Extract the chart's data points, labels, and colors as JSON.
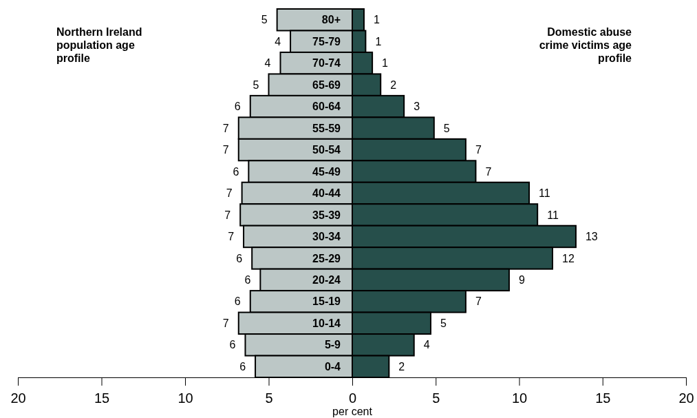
{
  "chart_data": [
    {
      "type": "bar",
      "orientation": "horizontal",
      "title": "Northern Ireland population age profile",
      "xlabel": "per cent",
      "categories": [
        "80+",
        "75-79",
        "70-74",
        "65-69",
        "60-64",
        "55-59",
        "50-54",
        "45-49",
        "40-44",
        "35-39",
        "30-34",
        "25-29",
        "20-24",
        "15-19",
        "10-14",
        "5-9",
        "0-4"
      ],
      "xlim": [
        20,
        0
      ],
      "xticks": [
        20,
        15,
        10,
        5,
        0
      ],
      "series": [
        {
          "color": "#bcc7c6",
          "values": [
            4.5,
            3.7,
            4.3,
            5.0,
            6.1,
            6.8,
            6.8,
            6.2,
            6.6,
            6.7,
            6.5,
            6.0,
            5.5,
            6.1,
            6.8,
            6.4,
            5.8
          ],
          "value_labels": [
            "5",
            "4",
            "4",
            "5",
            "6",
            "7",
            "7",
            "6",
            "7",
            "7",
            "7",
            "6",
            "6",
            "6",
            "7",
            "6",
            "6"
          ]
        }
      ]
    },
    {
      "type": "bar",
      "orientation": "horizontal",
      "title": "Domestic abuse crime victims age profile",
      "tick_labels": "x",
      "categories": [
        null,
        null,
        null,
        null,
        null,
        null,
        null,
        null,
        null,
        null,
        null,
        null,
        null,
        null,
        null,
        null,
        null
      ],
      "xlim": [
        0,
        20
      ],
      "xticks": [
        {
          "value": 0,
          "label": null
        },
        5,
        10,
        15,
        20
      ],
      "series": [
        {
          "color": "#264f4b",
          "values": [
            0.7,
            0.8,
            1.2,
            1.7,
            3.1,
            4.9,
            6.8,
            7.4,
            10.6,
            11.1,
            13.4,
            12.0,
            9.4,
            6.8,
            4.7,
            3.7,
            2.2
          ],
          "value_labels": [
            "1",
            "1",
            "1",
            "2",
            "3",
            "5",
            "7",
            "7",
            "11",
            "11",
            "13",
            "12",
            "9",
            "7",
            "5",
            "4",
            "2"
          ]
        }
      ]
    }
  ]
}
